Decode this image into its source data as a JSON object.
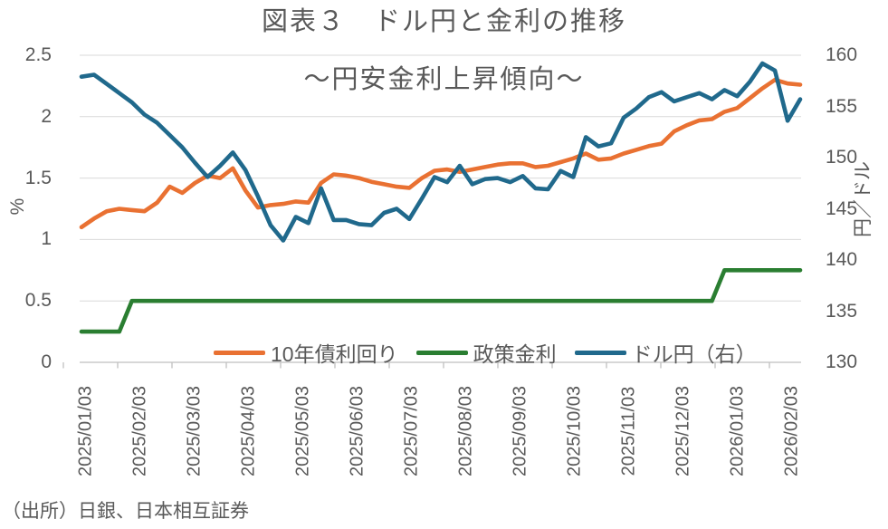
{
  "chart": {
    "title": "図表３　ドル円と金利の推移",
    "subtitle": "〜円安金利上昇傾向〜",
    "source_note": "（出所）日銀、日本相互証券"
  },
  "chart_data": {
    "type": "line",
    "title": "図表３　ドル円と金利の推移",
    "subtitle": "〜円安金利上昇傾向〜",
    "x_frequency": "weekly",
    "x_range": [
      "2025/01/03",
      "2026/02/03"
    ],
    "x_tick_labels": [
      "2025/01/03",
      "2025/02/03",
      "2025/03/03",
      "2025/04/03",
      "2025/05/03",
      "2025/06/03",
      "2025/07/03",
      "2025/08/03",
      "2025/09/03",
      "2025/10/03",
      "2025/11/03",
      "2025/12/03",
      "2026/01/03",
      "2026/02/03"
    ],
    "left_axis": {
      "label": "%",
      "min": 0,
      "max": 2.5,
      "ticks": [
        "0",
        "0.5",
        "1",
        "1.5",
        "2",
        "2.5"
      ]
    },
    "right_axis": {
      "label": "円／ドル",
      "min": 130,
      "max": 160,
      "ticks": [
        "130",
        "135",
        "140",
        "145",
        "150",
        "155",
        "160"
      ]
    },
    "grid": "horizontal",
    "grid_color": "#D9D9D9",
    "axis_line_color": "#BFBFBF",
    "text_color": "#595959",
    "legend_position": "bottom",
    "series": [
      {
        "name": "10年債利回り",
        "axis": "left",
        "color": "#E97132",
        "values": [
          1.1,
          1.17,
          1.23,
          1.25,
          1.24,
          1.23,
          1.3,
          1.43,
          1.38,
          1.46,
          1.52,
          1.5,
          1.58,
          1.4,
          1.26,
          1.28,
          1.29,
          1.31,
          1.3,
          1.46,
          1.53,
          1.52,
          1.5,
          1.47,
          1.45,
          1.43,
          1.42,
          1.5,
          1.56,
          1.57,
          1.55,
          1.57,
          1.59,
          1.61,
          1.62,
          1.62,
          1.59,
          1.6,
          1.63,
          1.66,
          1.7,
          1.65,
          1.66,
          1.7,
          1.73,
          1.76,
          1.78,
          1.88,
          1.93,
          1.97,
          1.98,
          2.04,
          2.07,
          2.15,
          2.23,
          2.3,
          2.27,
          2.26
        ]
      },
      {
        "name": "政策金利",
        "axis": "left",
        "color": "#2A7E31",
        "values": [
          0.25,
          0.25,
          0.25,
          0.25,
          0.5,
          0.5,
          0.5,
          0.5,
          0.5,
          0.5,
          0.5,
          0.5,
          0.5,
          0.5,
          0.5,
          0.5,
          0.5,
          0.5,
          0.5,
          0.5,
          0.5,
          0.5,
          0.5,
          0.5,
          0.5,
          0.5,
          0.5,
          0.5,
          0.5,
          0.5,
          0.5,
          0.5,
          0.5,
          0.5,
          0.5,
          0.5,
          0.5,
          0.5,
          0.5,
          0.5,
          0.5,
          0.5,
          0.5,
          0.5,
          0.5,
          0.5,
          0.5,
          0.5,
          0.5,
          0.5,
          0.5,
          0.75,
          0.75,
          0.75,
          0.75,
          0.75,
          0.75,
          0.75
        ]
      },
      {
        "name": "ドル円（右）",
        "axis": "right",
        "color": "#20698C",
        "values": [
          157.9,
          158.1,
          157.2,
          156.3,
          155.4,
          154.2,
          153.4,
          152.2,
          151.0,
          149.5,
          148.1,
          149.2,
          150.5,
          148.8,
          146.2,
          143.4,
          141.9,
          144.2,
          143.6,
          147.0,
          143.9,
          143.9,
          143.5,
          143.4,
          144.6,
          145.0,
          144.0,
          146.0,
          148.1,
          147.6,
          149.2,
          147.4,
          147.9,
          148.0,
          147.6,
          148.2,
          147.0,
          146.9,
          148.7,
          148.1,
          152.0,
          151.1,
          151.4,
          153.9,
          154.8,
          155.9,
          156.4,
          155.5,
          155.9,
          156.3,
          155.7,
          156.6,
          156.0,
          157.4,
          159.2,
          158.5,
          153.6,
          155.7
        ]
      }
    ]
  }
}
